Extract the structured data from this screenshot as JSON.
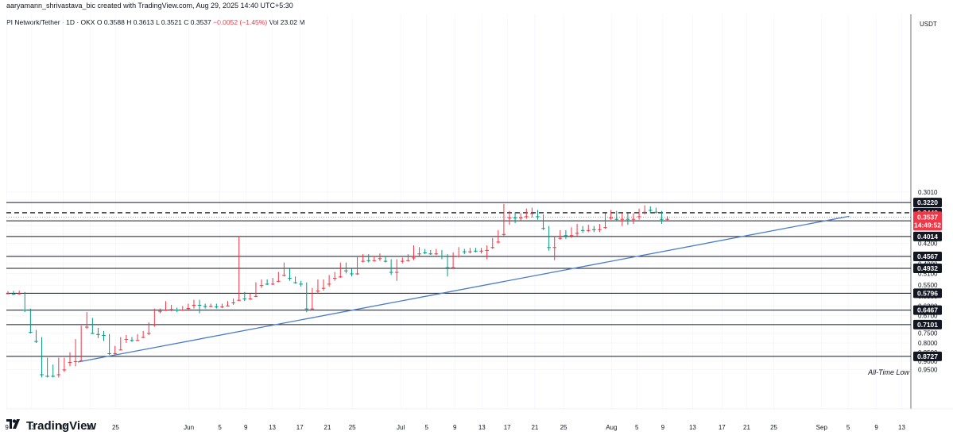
{
  "header": {
    "credit": "aaryamann_shrivastava_bic created with TradingView.com, Aug 29, 2025 14:40 UTC+5:30"
  },
  "legend": {
    "symbol": "PI Network/Tether · 1D · OKX",
    "open": "O 0.3588",
    "high": "H 0.3613",
    "low": "L 0.3521",
    "close": "C 0.3537",
    "change": "−0.0052 (−1.45%)",
    "volume": "Vol 23.02 M"
  },
  "brand": {
    "name": "TradingView",
    "icon": "tradingview-logo-icon"
  },
  "colors": {
    "up": "#089981",
    "down": "#f23645",
    "trend": "#4a7cc9",
    "level": "#131722"
  },
  "chart_data": {
    "type": "candlestick",
    "title": "PI Network/Tether · 1D · OKX",
    "y_axis": {
      "unit": "USDT",
      "scale": "log",
      "range": [
        0.3,
        0.98
      ],
      "ticks": [
        "0.9500",
        "0.9000",
        "0.8500",
        "0.8000",
        "0.7500",
        "0.6700",
        "0.6300",
        "0.5900",
        "0.5500",
        "0.5100",
        "0.4800",
        "0.4500",
        "0.4200",
        "0.3950",
        "0.3750",
        "0.3170",
        "0.3010"
      ]
    },
    "x_axis": {
      "ticks": [
        "9",
        "13",
        "17",
        "21",
        "25",
        "Jun",
        "5",
        "9",
        "13",
        "17",
        "21",
        "25",
        "Jul",
        "5",
        "9",
        "13",
        "17",
        "21",
        "25",
        "Aug",
        "5",
        "9",
        "13",
        "17",
        "21",
        "25",
        "Sep",
        "5",
        "9",
        "13"
      ]
    },
    "levels": [
      0.8727,
      0.7101,
      0.6467,
      0.5796,
      0.4932,
      0.4567,
      0.4014,
      0.3626,
      0.344,
      0.322
    ],
    "current_price": "0.3537",
    "countdown": "14:49:52",
    "annotation": "All-Time Low",
    "trendline": {
      "start": {
        "date": "May 15",
        "price": 0.905
      },
      "end": {
        "date": "Sep 5",
        "price": 0.352
      }
    },
    "candles": [
      [
        0.58,
        0.575,
        0.582,
        0.572
      ],
      [
        0.575,
        0.582,
        0.586,
        0.571
      ],
      [
        0.58,
        0.573,
        0.585,
        0.57
      ],
      [
        0.578,
        0.645,
        0.655,
        0.575
      ],
      [
        0.645,
        0.745,
        0.752,
        0.64
      ],
      [
        0.745,
        0.79,
        0.8,
        0.735
      ],
      [
        0.79,
        0.98,
        1.0,
        0.77
      ],
      [
        0.9,
        0.99,
        1.0,
        0.88
      ],
      [
        0.985,
        0.99,
        1.0,
        0.92
      ],
      [
        0.98,
        0.95,
        1.0,
        0.88
      ],
      [
        0.95,
        0.905,
        0.965,
        0.88
      ],
      [
        0.905,
        0.9,
        0.93,
        0.85
      ],
      [
        0.9,
        0.895,
        0.93,
        0.78
      ],
      [
        0.895,
        0.72,
        0.9,
        0.715
      ],
      [
        0.72,
        0.69,
        0.73,
        0.655
      ],
      [
        0.69,
        0.75,
        0.755,
        0.68
      ],
      [
        0.75,
        0.755,
        0.775,
        0.725
      ],
      [
        0.755,
        0.76,
        0.79,
        0.74
      ],
      [
        0.76,
        0.855,
        0.865,
        0.755
      ],
      [
        0.855,
        0.835,
        0.862,
        0.815
      ],
      [
        0.835,
        0.78,
        0.84,
        0.77
      ],
      [
        0.78,
        0.775,
        0.8,
        0.76
      ],
      [
        0.775,
        0.785,
        0.795,
        0.77
      ],
      [
        0.785,
        0.77,
        0.79,
        0.755
      ],
      [
        0.77,
        0.75,
        0.775,
        0.74
      ],
      [
        0.75,
        0.71,
        0.76,
        0.7
      ],
      [
        0.71,
        0.65,
        0.72,
        0.64
      ],
      [
        0.65,
        0.646,
        0.66,
        0.64
      ],
      [
        0.646,
        0.643,
        0.65,
        0.61
      ],
      [
        0.643,
        0.64,
        0.652,
        0.625
      ],
      [
        0.64,
        0.645,
        0.655,
        0.636
      ],
      [
        0.645,
        0.638,
        0.65,
        0.63
      ],
      [
        0.638,
        0.625,
        0.645,
        0.62
      ],
      [
        0.625,
        0.61,
        0.64,
        0.605
      ],
      [
        0.61,
        0.625,
        0.66,
        0.605
      ],
      [
        0.625,
        0.63,
        0.64,
        0.62
      ],
      [
        0.63,
        0.625,
        0.635,
        0.62
      ],
      [
        0.625,
        0.632,
        0.64,
        0.62
      ],
      [
        0.632,
        0.628,
        0.638,
        0.62
      ],
      [
        0.628,
        0.615,
        0.632,
        0.61
      ],
      [
        0.615,
        0.605,
        0.625,
        0.6
      ],
      [
        0.605,
        0.585,
        0.61,
        0.4
      ],
      [
        0.585,
        0.6,
        0.61,
        0.575
      ],
      [
        0.6,
        0.59,
        0.605,
        0.58
      ],
      [
        0.59,
        0.55,
        0.595,
        0.54
      ],
      [
        0.55,
        0.54,
        0.56,
        0.53
      ],
      [
        0.54,
        0.545,
        0.55,
        0.53
      ],
      [
        0.545,
        0.535,
        0.55,
        0.525
      ],
      [
        0.535,
        0.515,
        0.54,
        0.505
      ],
      [
        0.515,
        0.5,
        0.52,
        0.475
      ],
      [
        0.5,
        0.525,
        0.535,
        0.495
      ],
      [
        0.525,
        0.54,
        0.545,
        0.52
      ],
      [
        0.54,
        0.545,
        0.555,
        0.535
      ],
      [
        0.545,
        0.64,
        0.655,
        0.54
      ],
      [
        0.64,
        0.57,
        0.645,
        0.56
      ],
      [
        0.57,
        0.56,
        0.58,
        0.53
      ],
      [
        0.56,
        0.545,
        0.57,
        0.53
      ],
      [
        0.545,
        0.525,
        0.555,
        0.515
      ],
      [
        0.525,
        0.52,
        0.535,
        0.505
      ],
      [
        0.52,
        0.48,
        0.525,
        0.475
      ],
      [
        0.48,
        0.5,
        0.51,
        0.475
      ],
      [
        0.5,
        0.51,
        0.52,
        0.495
      ],
      [
        0.51,
        0.47,
        0.515,
        0.455
      ],
      [
        0.47,
        0.46,
        0.475,
        0.45
      ],
      [
        0.46,
        0.468,
        0.475,
        0.45
      ],
      [
        0.468,
        0.462,
        0.472,
        0.455
      ],
      [
        0.462,
        0.458,
        0.47,
        0.448
      ],
      [
        0.458,
        0.47,
        0.475,
        0.455
      ],
      [
        0.47,
        0.505,
        0.515,
        0.465
      ],
      [
        0.505,
        0.47,
        0.535,
        0.465
      ],
      [
        0.47,
        0.468,
        0.478,
        0.46
      ],
      [
        0.468,
        0.46,
        0.472,
        0.45
      ],
      [
        0.46,
        0.448,
        0.468,
        0.425
      ],
      [
        0.448,
        0.44,
        0.455,
        0.43
      ],
      [
        0.44,
        0.445,
        0.45,
        0.435
      ],
      [
        0.445,
        0.448,
        0.452,
        0.438
      ],
      [
        0.448,
        0.442,
        0.452,
        0.435
      ],
      [
        0.442,
        0.455,
        0.465,
        0.438
      ],
      [
        0.455,
        0.49,
        0.52,
        0.45
      ],
      [
        0.49,
        0.455,
        0.495,
        0.445
      ],
      [
        0.455,
        0.44,
        0.46,
        0.43
      ],
      [
        0.44,
        0.442,
        0.45,
        0.435
      ],
      [
        0.442,
        0.438,
        0.448,
        0.432
      ],
      [
        0.438,
        0.44,
        0.445,
        0.432
      ],
      [
        0.44,
        0.438,
        0.448,
        0.432
      ],
      [
        0.438,
        0.43,
        0.465,
        0.425
      ],
      [
        0.43,
        0.415,
        0.435,
        0.405
      ],
      [
        0.415,
        0.395,
        0.42,
        0.385
      ],
      [
        0.395,
        0.355,
        0.4,
        0.325
      ],
      [
        0.355,
        0.348,
        0.372,
        0.34
      ],
      [
        0.348,
        0.355,
        0.368,
        0.343
      ],
      [
        0.355,
        0.352,
        0.362,
        0.345
      ],
      [
        0.352,
        0.345,
        0.358,
        0.335
      ],
      [
        0.345,
        0.34,
        0.355,
        0.333
      ],
      [
        0.34,
        0.352,
        0.36,
        0.338
      ],
      [
        0.352,
        0.38,
        0.385,
        0.348
      ],
      [
        0.38,
        0.43,
        0.44,
        0.375
      ],
      [
        0.43,
        0.405,
        0.468,
        0.4
      ],
      [
        0.405,
        0.395,
        0.41,
        0.385
      ],
      [
        0.395,
        0.398,
        0.408,
        0.385
      ],
      [
        0.398,
        0.392,
        0.405,
        0.378
      ],
      [
        0.392,
        0.378,
        0.4,
        0.37
      ],
      [
        0.378,
        0.385,
        0.392,
        0.375
      ],
      [
        0.385,
        0.38,
        0.39,
        0.372
      ],
      [
        0.38,
        0.383,
        0.39,
        0.375
      ],
      [
        0.383,
        0.378,
        0.39,
        0.37
      ],
      [
        0.378,
        0.355,
        0.382,
        0.345
      ],
      [
        0.355,
        0.342,
        0.36,
        0.338
      ],
      [
        0.342,
        0.358,
        0.362,
        0.34
      ],
      [
        0.358,
        0.35,
        0.375,
        0.345
      ],
      [
        0.35,
        0.358,
        0.372,
        0.345
      ],
      [
        0.358,
        0.352,
        0.37,
        0.345
      ],
      [
        0.352,
        0.342,
        0.36,
        0.335
      ],
      [
        0.342,
        0.335,
        0.348,
        0.328
      ],
      [
        0.335,
        0.338,
        0.345,
        0.33
      ],
      [
        0.338,
        0.342,
        0.346,
        0.333
      ],
      [
        0.342,
        0.358,
        0.37,
        0.34
      ],
      [
        0.358,
        0.354,
        0.361,
        0.352
      ]
    ]
  }
}
